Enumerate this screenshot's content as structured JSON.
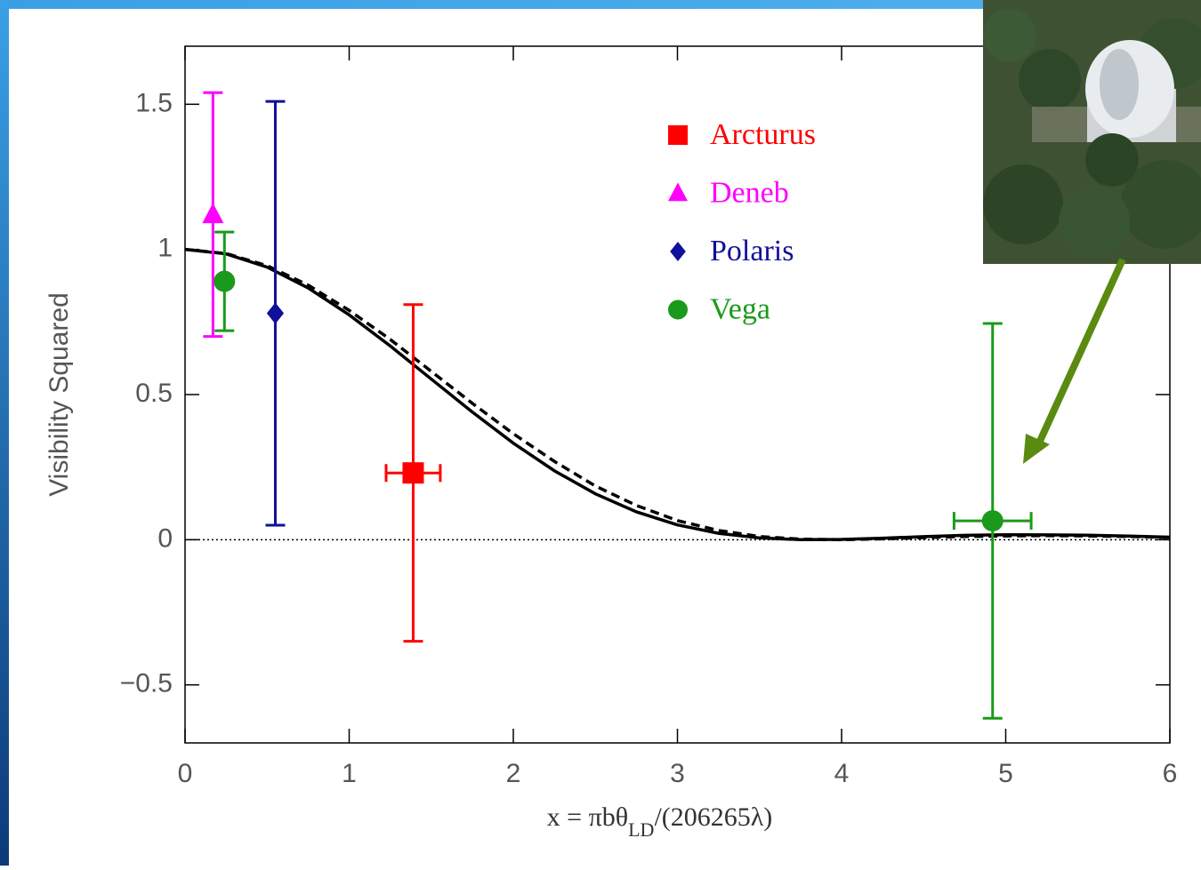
{
  "chart_data": {
    "type": "scatter",
    "xlabel": [
      "x = πbθ",
      "LD",
      "/(206265λ)"
    ],
    "ylabel": "Visibility Squared",
    "xlim": [
      0,
      6
    ],
    "ylim": [
      -0.7,
      1.7
    ],
    "xticks": [
      0,
      1,
      2,
      3,
      4,
      5,
      6
    ],
    "yticks": [
      {
        "value": -0.5,
        "label": "−0.5"
      },
      0,
      0.5,
      1,
      1.5
    ],
    "zero_line": true,
    "series": [
      {
        "name": "Arcturus",
        "color": "#ff0000",
        "marker": "square",
        "points": [
          {
            "x": 1.39,
            "y": 0.23,
            "yerr": 0.58,
            "xerr": 0.165
          }
        ]
      },
      {
        "name": "Deneb",
        "color": "#ff00ff",
        "marker": "triangle",
        "points": [
          {
            "x": 0.17,
            "y": 1.12,
            "yerr": 0.42
          }
        ]
      },
      {
        "name": "Polaris",
        "color": "#10109a",
        "marker": "diamond",
        "points": [
          {
            "x": 0.55,
            "y": 0.78,
            "yerr": 0.73
          }
        ]
      },
      {
        "name": "Vega",
        "color": "#1a9a1a",
        "marker": "circle",
        "points": [
          {
            "x": 0.24,
            "y": 0.89,
            "yerr": 0.17
          },
          {
            "x": 4.92,
            "y": 0.065,
            "yerr": 0.68,
            "xerr": 0.235
          }
        ]
      }
    ],
    "curve_x": [
      0,
      0.25,
      0.5,
      0.75,
      1,
      1.25,
      1.5,
      1.75,
      2,
      2.25,
      2.5,
      2.75,
      3,
      3.25,
      3.5,
      3.75,
      4,
      4.25,
      4.5,
      4.75,
      5,
      5.25,
      5.5,
      5.75,
      6
    ],
    "curves": [
      {
        "color": "#000000",
        "dashed": false,
        "values": [
          1,
          0.9846,
          0.9391,
          0.8673,
          0.7746,
          0.6675,
          0.5534,
          0.4399,
          0.3326,
          0.2376,
          0.1581,
          0.096,
          0.0511,
          0.022,
          0.0062,
          0.0003,
          0.0011,
          0.0053,
          0.0105,
          0.0151,
          0.0172,
          0.0169,
          0.0154,
          0.0126,
          0.0085
        ]
      },
      {
        "color": "#000000",
        "dashed": true,
        "values": [
          1,
          0.986,
          0.944,
          0.877,
          0.79,
          0.69,
          0.58,
          0.47,
          0.365,
          0.27,
          0.185,
          0.118,
          0.066,
          0.032,
          0.011,
          0.002,
          0,
          0.003,
          0.007,
          0.011,
          0.013,
          0.014,
          0.013,
          0.011,
          0.008
        ]
      }
    ]
  }
}
